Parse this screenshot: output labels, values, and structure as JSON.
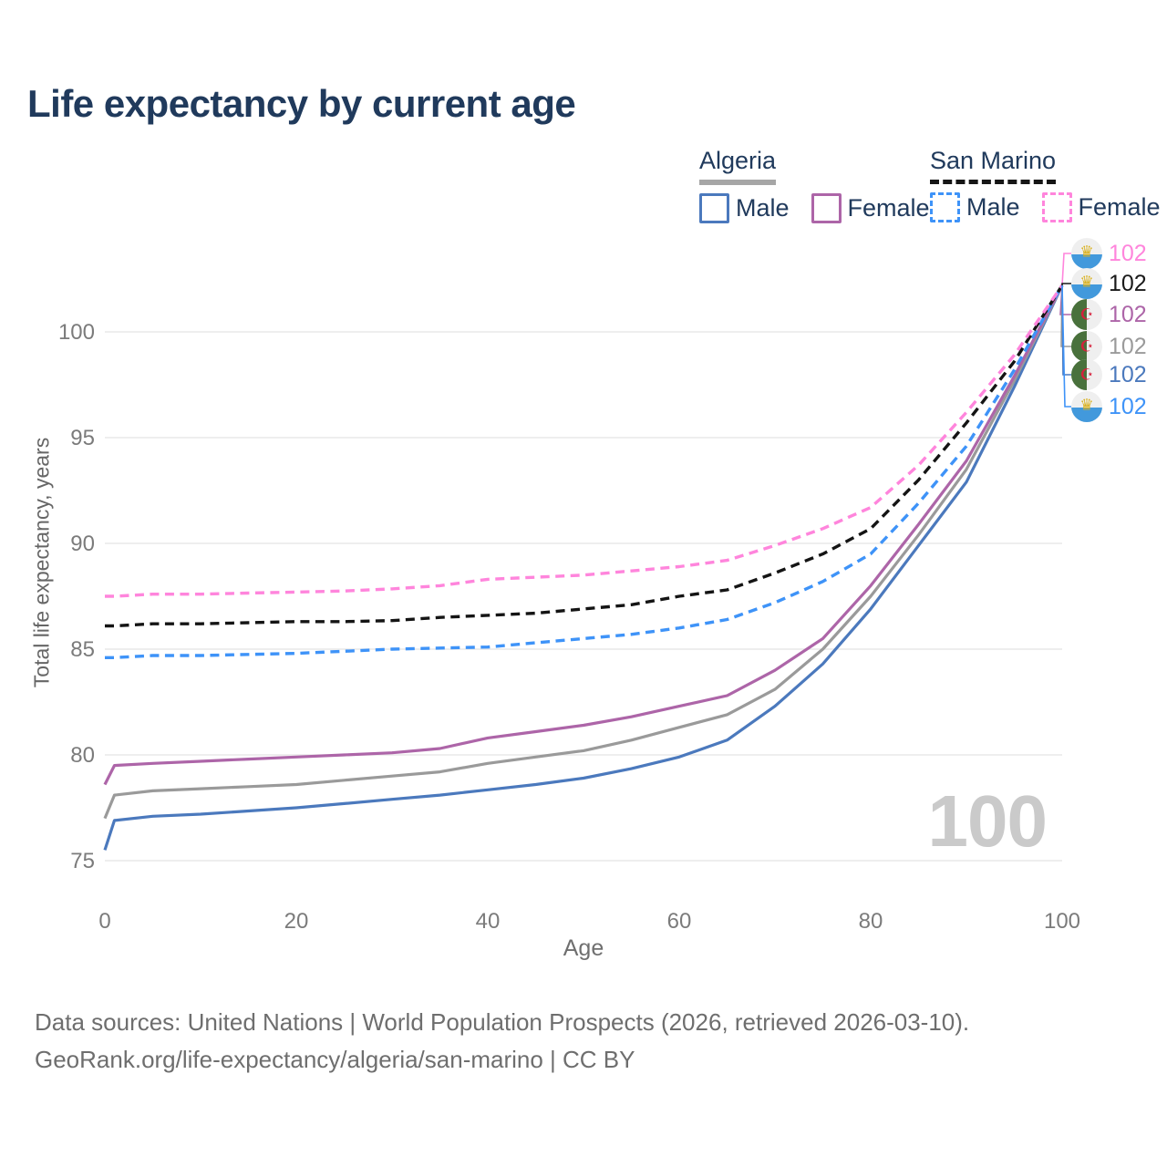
{
  "title": "Life expectancy by current age",
  "legend": {
    "groups": [
      {
        "name": "Algeria",
        "line_style": "solid",
        "underline_color": "#a6a6a6",
        "items": [
          {
            "label": "Male",
            "color": "#4b79bd",
            "dashed": false
          },
          {
            "label": "Female",
            "color": "#ad65a8",
            "dashed": false
          }
        ]
      },
      {
        "name": "San Marino",
        "line_style": "dashed",
        "underline_color": "#161616",
        "items": [
          {
            "label": "Male",
            "color": "#3e93f8",
            "dashed": true
          },
          {
            "label": "Female",
            "color": "#ff85dc",
            "dashed": true
          }
        ]
      }
    ]
  },
  "chart_data": {
    "type": "line",
    "title": "Life expectancy by current age",
    "xlabel": "Age",
    "ylabel": "Total life expectancy, years",
    "xlim": [
      0,
      100
    ],
    "ylim": [
      75,
      102.5
    ],
    "xticks": [
      0,
      20,
      40,
      60,
      80,
      100
    ],
    "yticks": [
      75,
      80,
      85,
      90,
      95,
      100
    ],
    "grid": "horizontal",
    "x": [
      0,
      1,
      5,
      10,
      15,
      20,
      25,
      30,
      35,
      40,
      45,
      50,
      55,
      60,
      65,
      70,
      75,
      80,
      85,
      90,
      95,
      100
    ],
    "series": [
      {
        "name": "Algeria Male",
        "color": "#4b79bd",
        "dash": false,
        "values": [
          75.5,
          76.9,
          77.1,
          77.2,
          77.35,
          77.5,
          77.7,
          77.9,
          78.1,
          78.35,
          78.6,
          78.9,
          79.35,
          79.9,
          80.7,
          82.3,
          84.3,
          86.9,
          89.9,
          92.9,
          97.4,
          102.2
        ]
      },
      {
        "name": "Algeria Total",
        "color": "#9a9a9a",
        "dash": false,
        "values": [
          77.0,
          78.1,
          78.3,
          78.4,
          78.5,
          78.6,
          78.8,
          79.0,
          79.2,
          79.6,
          79.9,
          80.2,
          80.7,
          81.3,
          81.9,
          83.1,
          85.0,
          87.5,
          90.4,
          93.5,
          97.7,
          102.2
        ]
      },
      {
        "name": "Algeria Female",
        "color": "#ad65a8",
        "dash": false,
        "values": [
          78.6,
          79.5,
          79.6,
          79.7,
          79.8,
          79.9,
          80.0,
          80.1,
          80.3,
          80.8,
          81.1,
          81.4,
          81.8,
          82.3,
          82.8,
          84.0,
          85.5,
          88.0,
          90.9,
          93.9,
          97.9,
          102.2
        ]
      },
      {
        "name": "San Marino Male",
        "color": "#3e93f8",
        "dash": true,
        "values": [
          84.6,
          84.6,
          84.7,
          84.7,
          84.75,
          84.8,
          84.9,
          85.0,
          85.05,
          85.1,
          85.3,
          85.5,
          85.7,
          86.0,
          86.4,
          87.2,
          88.2,
          89.5,
          91.9,
          94.6,
          98.2,
          102.2
        ]
      },
      {
        "name": "San Marino Total",
        "color": "#141414",
        "dash": true,
        "values": [
          86.1,
          86.1,
          86.2,
          86.2,
          86.25,
          86.3,
          86.3,
          86.35,
          86.5,
          86.6,
          86.7,
          86.9,
          87.1,
          87.5,
          87.8,
          88.6,
          89.5,
          90.7,
          93.0,
          95.7,
          98.6,
          102.2
        ]
      },
      {
        "name": "San Marino Female",
        "color": "#ff85dc",
        "dash": true,
        "values": [
          87.5,
          87.5,
          87.6,
          87.6,
          87.65,
          87.7,
          87.75,
          87.85,
          88.0,
          88.3,
          88.4,
          88.5,
          88.7,
          88.9,
          89.2,
          89.9,
          90.7,
          91.7,
          93.7,
          96.2,
          98.9,
          102.2
        ]
      }
    ]
  },
  "end_labels": [
    {
      "flag": "san-marino",
      "series": "San Marino Female",
      "value": "102",
      "color": "#ff85dc"
    },
    {
      "flag": "san-marino",
      "series": "San Marino Total",
      "value": "102",
      "color": "#1a1a1a"
    },
    {
      "flag": "algeria",
      "series": "Algeria Female",
      "value": "102",
      "color": "#ad65a8"
    },
    {
      "flag": "algeria",
      "series": "Algeria Total",
      "value": "102",
      "color": "#9a9a9a"
    },
    {
      "flag": "algeria",
      "series": "Algeria Male",
      "value": "102",
      "color": "#4b79bd"
    },
    {
      "flag": "san-marino",
      "series": "San Marino Male",
      "value": "102",
      "color": "#3e93f8"
    }
  ],
  "watermark_age": "100",
  "footer": {
    "line1": "Data sources: United Nations | World Population Prospects (2026, retrieved 2026-03-10).",
    "line2": "GeoRank.org/life-expectancy/algeria/san-marino | CC BY"
  }
}
